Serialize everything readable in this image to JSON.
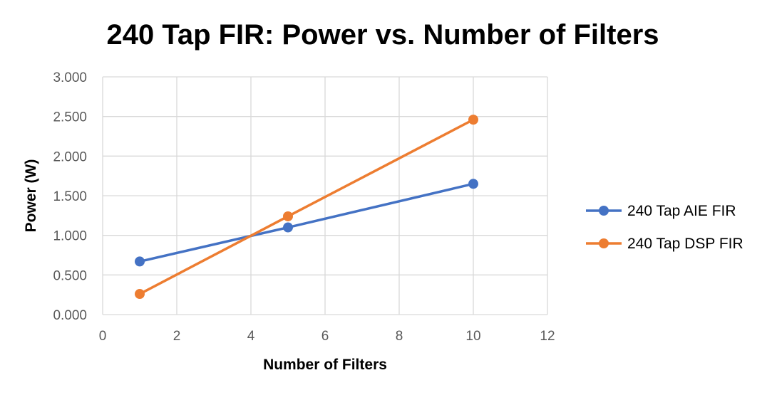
{
  "chart_data": {
    "type": "line",
    "title": "240 Tap FIR: Power vs. Number of Filters",
    "xlabel": "Number of Filters",
    "ylabel": "Power (W)",
    "xlim": [
      0,
      12
    ],
    "ylim": [
      0,
      3
    ],
    "x_ticks": [
      "0",
      "2",
      "4",
      "6",
      "8",
      "10",
      "12"
    ],
    "y_ticks": [
      "0.000",
      "0.500",
      "1.000",
      "1.500",
      "2.000",
      "2.500",
      "3.000"
    ],
    "grid": true,
    "legend_position": "right",
    "series": [
      {
        "name": "240 Tap AIE FIR",
        "color": "#4472C4",
        "x": [
          1,
          5,
          10
        ],
        "y": [
          0.67,
          1.1,
          1.65
        ]
      },
      {
        "name": "240 Tap DSP FIR",
        "color": "#ED7D31",
        "x": [
          1,
          5,
          10
        ],
        "y": [
          0.26,
          1.24,
          2.46
        ]
      }
    ]
  }
}
